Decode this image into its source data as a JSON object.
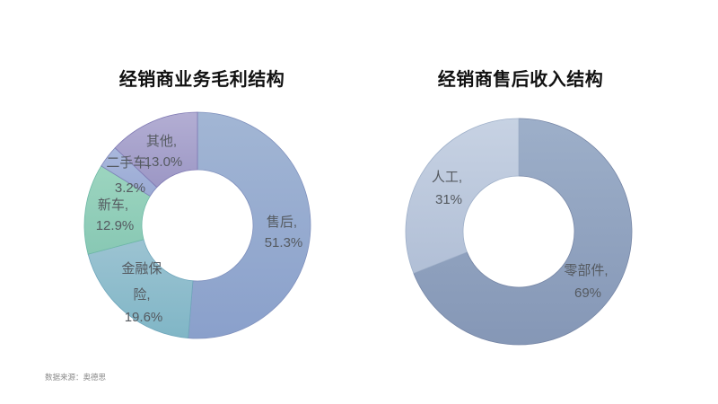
{
  "chart_data": [
    {
      "type": "pie",
      "style": "donut",
      "title": "经销商业务毛利结构",
      "categories": [
        "售后",
        "金融保险",
        "新车",
        "二手车",
        "其他"
      ],
      "values": [
        51.3,
        19.6,
        12.9,
        3.2,
        13.0
      ],
      "unit": "%",
      "data_labels": [
        "售后,\n51.3%",
        "金融保险,\n19.6%",
        "新车,\n12.9%",
        "二手车,\n3.2%",
        "其他,\n13.0%"
      ],
      "colors": [
        "#8fa6cc",
        "#8dbfcc",
        "#93d0b8",
        "#a3b3d8",
        "#a9a3cc"
      ],
      "start_angle": "12 o'clock, clockwise",
      "legend": "none"
    },
    {
      "type": "pie",
      "style": "donut",
      "title": "经销商售后收入结构",
      "categories": [
        "零部件",
        "人工"
      ],
      "values": [
        69,
        31
      ],
      "unit": "%",
      "data_labels": [
        "零部件,\n69%",
        "人工,\n31%"
      ],
      "colors": [
        "#8d9fbd",
        "#bccadf"
      ],
      "start_angle": "12 o'clock, clockwise",
      "legend": "none"
    }
  ],
  "left": {
    "title": "经销商业务毛利结构",
    "labels": {
      "aftersales": [
        "售后,",
        "51.3%"
      ],
      "finance": [
        "金融保",
        "险,",
        "19.6%"
      ],
      "newcar": [
        "新车,",
        "12.9%"
      ],
      "usedcar": [
        "二手车,",
        "3.2%"
      ],
      "other": [
        "其他,",
        "13.0%"
      ]
    }
  },
  "right": {
    "title": "经销商售后收入结构",
    "labels": {
      "parts": [
        "零部件,",
        "69%"
      ],
      "labor": [
        "人工,",
        "31%"
      ]
    }
  },
  "footer": {
    "source": "数据来源：奥德思"
  }
}
